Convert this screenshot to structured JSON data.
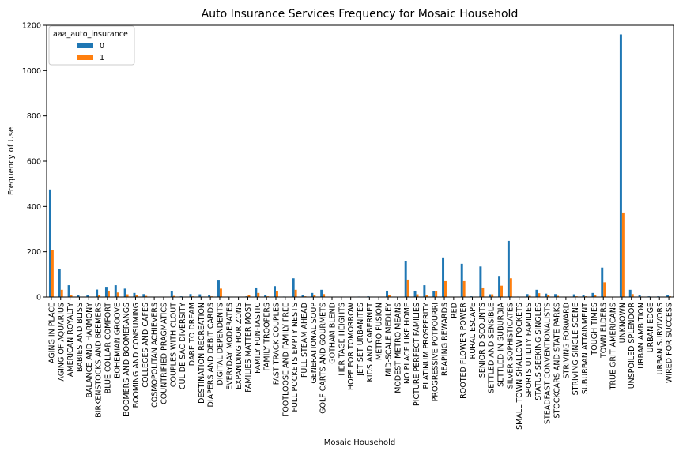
{
  "chart_data": {
    "type": "bar",
    "title": "Auto Insurance Services Frequency for Mosaic Household",
    "xlabel": "Mosaic Household",
    "ylabel": "Frequency of Use",
    "ylim": [
      0,
      1200
    ],
    "yticks": [
      0,
      200,
      400,
      600,
      800,
      1000,
      1200
    ],
    "grid": false,
    "legend": {
      "title": "aaa_auto_insurance",
      "placement": "top-left"
    },
    "categories": [
      "AGING IN PLACE",
      "AGING OF AQUARIUS",
      "AMERICAN ROYALTY",
      "BABIES AND BLISS",
      "BALANCE AND HARMONY",
      "BIRKENSTOCKS AND BEEMERS",
      "BLUE COLLAR COMFORT",
      "BOHEMIAN GROOVE",
      "BOOMERS AND BOOMERANGS",
      "BOOMING AND CONSUMING",
      "COLLEGES AND CAFES",
      "COSMOPOLITAN ACHIEVERS",
      "COUNTRIFIED PRAGMATICS",
      "COUPLES WITH CLOUT",
      "CUL DE SAC DIVERSITY",
      "DARE TO DREAM",
      "DESTINATION RECREATION",
      "DIAPERS AND DEBIT CARDS",
      "DIGITAL DEPENDENTS",
      "EVERYDAY MODERATES",
      "EXPANDING HORIZONS",
      "FAMILIES MATTER MOST",
      "FAMILY FUN-TASTIC",
      "FAMILY TROOPERS",
      "FAST TRACK COUPLES",
      "FOOTLOOSE AND FAMILY FREE",
      "FULL POCKETS  EMPTY NESTS",
      "FULL STEAM AHEAD",
      "GENERATIONAL SOUP",
      "GOLF CARTS AND GOURMETS",
      "GOTHAM BLEND",
      "HERITAGE HEIGHTS",
      "HOPE FOR TOMORROW",
      "JET SET URBANITES",
      "KIDS AND CABERNET",
      "METRO FUSION",
      "MID-SCALE MEDLEY",
      "MODEST METRO MEANS",
      "NO PLACE LIKE HOME",
      "PICTURE PERFECT FAMILIES",
      "PLATINUM PROSPERITY",
      "PROGRESSIVE POTPOURRI",
      "REAPING REWARDS",
      "RED",
      "ROOTED FLOWER POWER",
      "RURAL ESCAPE",
      "SENIOR DISCOUNTS",
      "SETTLED AND SENSIBLE",
      "SETTLED IN SUBURBIA",
      "SILVER SOPHISTICATES",
      "SMALL TOWN SHALLOW POCKETS",
      "SPORTS UTILITY FAMILIES",
      "STATUS SEEKING SINGLES",
      "STEADFAST CONVENTIONALISTS",
      "STOCKCARS AND STATE PARKS",
      "STRIVING FORWARD",
      "STRIVING SINGLE SCENE",
      "SUBURBAN ATTAINMENT",
      "TOUGH TIMES",
      "TOWN ELDERS",
      "TRUE GRIT AMERICANS",
      "UNKNOWN",
      "UNSPOILED SPLENDOR",
      "URBAN AMBITION",
      "URBAN EDGE",
      "URBAN SURVIVORS",
      "WIRED FOR SUCCESS"
    ],
    "series": [
      {
        "name": "0",
        "color": "#1f77b4",
        "values": [
          475,
          125,
          52,
          10,
          10,
          33,
          45,
          52,
          37,
          18,
          13,
          0,
          0,
          25,
          3,
          13,
          12,
          8,
          73,
          2,
          0,
          3,
          42,
          10,
          48,
          2,
          83,
          8,
          18,
          32,
          0,
          0,
          0,
          2,
          3,
          0,
          28,
          0,
          160,
          28,
          52,
          25,
          175,
          0,
          147,
          3,
          135,
          12,
          90,
          248,
          2,
          13,
          32,
          15,
          13,
          0,
          12,
          8,
          18,
          130,
          0,
          1160,
          32,
          8,
          3,
          3,
          10
        ]
      },
      {
        "name": "1",
        "color": "#ff7f0e",
        "values": [
          208,
          32,
          8,
          0,
          0,
          10,
          25,
          20,
          12,
          8,
          5,
          0,
          0,
          5,
          0,
          3,
          2,
          3,
          37,
          0,
          0,
          8,
          18,
          3,
          25,
          0,
          32,
          3,
          8,
          13,
          0,
          0,
          0,
          0,
          0,
          0,
          8,
          0,
          77,
          12,
          10,
          25,
          70,
          0,
          70,
          0,
          42,
          12,
          50,
          83,
          0,
          5,
          17,
          8,
          5,
          0,
          3,
          3,
          8,
          65,
          0,
          370,
          13,
          2,
          0,
          0,
          3
        ]
      }
    ]
  }
}
